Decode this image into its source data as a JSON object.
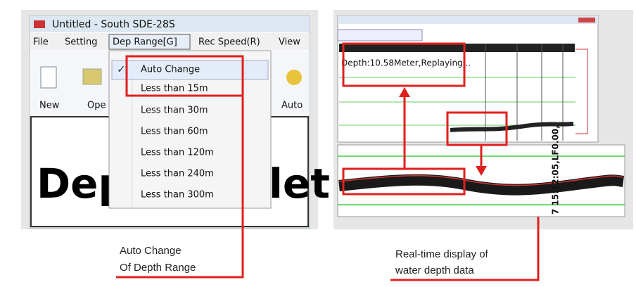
{
  "left_window": {
    "title": "Untitled - South SDE-28S",
    "menu": [
      "File",
      "Setting",
      "Dep Range[G]",
      "Rec Speed(R)",
      "View"
    ],
    "toolbar": [
      "New",
      "Ope",
      "Auto"
    ],
    "dropdown": [
      "Auto Change",
      "Less than 15m",
      "Less than 30m",
      "Less than 60m",
      "Less than 120m",
      "Less than 240m",
      "Less than 300m"
    ],
    "big_text": [
      "Dep",
      "let"
    ]
  },
  "right_window": {
    "status": "Depth:10.58Meter,Replaying...",
    "timestamp": "7 15:12:05,LF0.00,"
  },
  "captions": {
    "left": [
      "Auto Change",
      "Of Depth Range"
    ],
    "right": [
      "Real-time display of",
      "water depth data"
    ]
  }
}
